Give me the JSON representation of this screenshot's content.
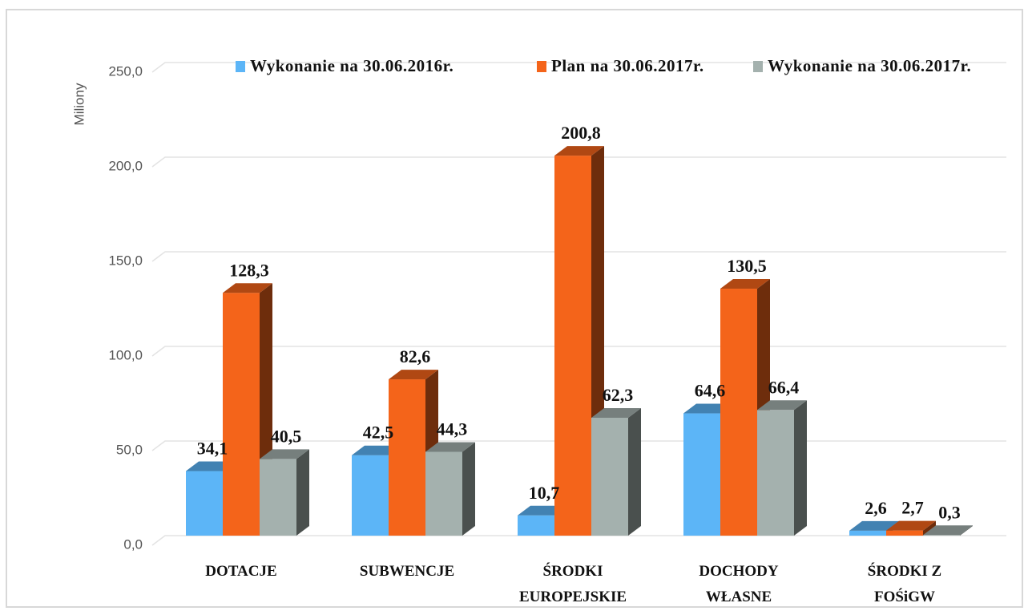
{
  "chart_data": {
    "type": "bar3d",
    "y_label": "Miliony",
    "categories": [
      "DOTACJE",
      "SUBWENCJE",
      "ŚRODKI\nEUROPEJSKIE",
      "DOCHODY\nWŁASNE",
      "ŚRODKI Z\nFOŚiGW"
    ],
    "series": [
      {
        "name": "Wykonanie na 30.06.2016r.",
        "color": "#5cb5f7",
        "values": [
          34.1,
          42.5,
          10.7,
          64.6,
          2.6
        ],
        "value_labels": [
          "34,1",
          "42,5",
          "10,7",
          "64,6",
          "2,6"
        ]
      },
      {
        "name": "Plan na 30.06.2017r.",
        "color": "#f4641a",
        "values": [
          128.3,
          82.6,
          200.8,
          130.5,
          2.7
        ],
        "value_labels": [
          "128,3",
          "82,6",
          "200,8",
          "130,5",
          "2,7"
        ]
      },
      {
        "name": "Wykonanie na 30.06.2017r.",
        "color": "#a4b1ae",
        "values": [
          40.5,
          44.3,
          62.3,
          66.4,
          0.3
        ],
        "value_labels": [
          "40,5",
          "44,3",
          "62,3",
          "66,4",
          "0,3"
        ]
      }
    ],
    "ylim": [
      0,
      250
    ],
    "yticks": [
      {
        "value": 0,
        "label": "0,0"
      },
      {
        "value": 50,
        "label": "50,0"
      },
      {
        "value": 100,
        "label": "100,0"
      },
      {
        "value": 150,
        "label": "150,0"
      },
      {
        "value": 200,
        "label": "200,0"
      },
      {
        "value": 250,
        "label": "250,0"
      }
    ],
    "grid": true
  }
}
